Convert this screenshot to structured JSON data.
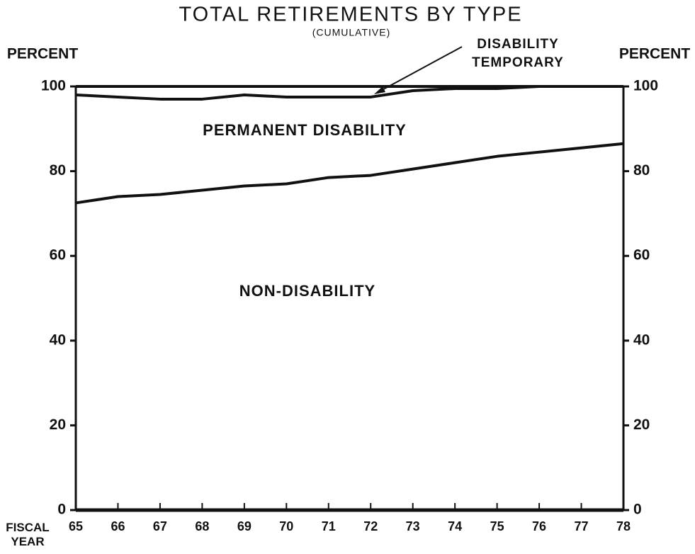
{
  "chart_data": {
    "type": "stacked_line",
    "title": "TOTAL RETIREMENTS BY TYPE",
    "subtitle": "(CUMULATIVE)",
    "y_label": "PERCENT",
    "y2_label": "PERCENT",
    "x_label": "FISCAL YEAR",
    "x": [
      65,
      66,
      67,
      68,
      69,
      70,
      71,
      72,
      73,
      74,
      75,
      76,
      77,
      78
    ],
    "xlim": [
      65,
      78
    ],
    "xticks": [
      65,
      66,
      67,
      68,
      69,
      70,
      71,
      72,
      73,
      74,
      75,
      76,
      77,
      78
    ],
    "ylim": [
      0,
      100
    ],
    "yticks": [
      0,
      20,
      40,
      60,
      80,
      100
    ],
    "y2lim": [
      0,
      100
    ],
    "y2ticks": [
      0,
      20,
      40,
      60,
      80,
      100
    ],
    "series": [
      {
        "name": "NON-DISABILITY",
        "color": "#111111",
        "values": [
          72.5,
          74,
          74.5,
          75.5,
          76.5,
          77,
          78.5,
          79,
          80.5,
          82,
          83.5,
          84.5,
          85.5,
          86.5
        ]
      },
      {
        "name": "PERMANENT DISABILITY",
        "color": "#111111",
        "values": [
          25.5,
          23.5,
          22.5,
          21.5,
          21.5,
          20.5,
          19,
          18.5,
          18.5,
          17.5,
          16,
          15.5,
          14.5,
          13.5
        ]
      },
      {
        "name": "DISABILITY TEMPORARY",
        "color": "#111111",
        "values": [
          2,
          2.5,
          3,
          3,
          2,
          2.5,
          2.5,
          2.5,
          1,
          0.5,
          0.5,
          0,
          0,
          0
        ]
      }
    ]
  }
}
